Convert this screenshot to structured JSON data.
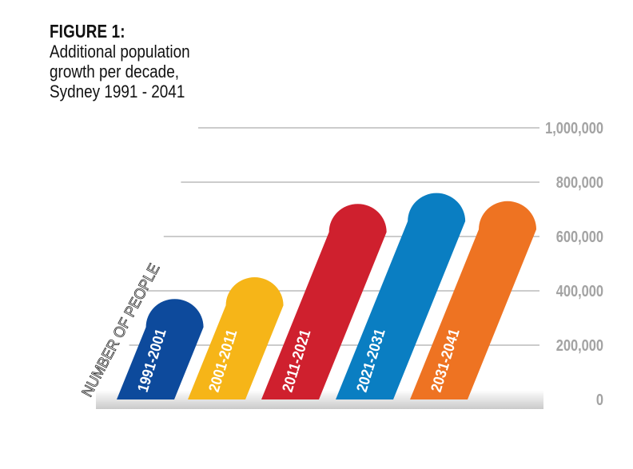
{
  "figure": {
    "label": "FIGURE 1:",
    "title": "Additional population growth per decade, Sydney 1991 - 2041"
  },
  "chart_data": {
    "type": "bar",
    "title": "Additional population growth per decade, Sydney 1991 - 2041",
    "xlabel": "",
    "ylabel": "NUMBER OF PEOPLE",
    "categories": [
      "1991-2001",
      "2001-2011",
      "2011-2021",
      "2021-2031",
      "2031-2041"
    ],
    "values": [
      370000,
      450000,
      720000,
      760000,
      730000
    ],
    "ylim": [
      0,
      1000000
    ],
    "yticks": [
      0,
      200000,
      400000,
      600000,
      800000,
      1000000
    ],
    "ytick_labels": [
      "0",
      "200,000",
      "400,000",
      "600,000",
      "800,000",
      "1,000,000"
    ],
    "grid": true,
    "colors": [
      "#0d4a9c",
      "#f6b518",
      "#cf202e",
      "#0a7ec2",
      "#ee7322"
    ]
  }
}
